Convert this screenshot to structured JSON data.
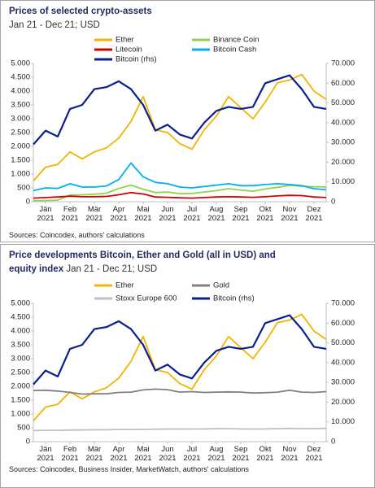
{
  "chart_data": [
    {
      "type": "line",
      "title": "Prices of selected crypto-assets",
      "subtitle": "Jan 21 - Dec 21; USD",
      "x": [
        0,
        0.5,
        1,
        1.5,
        2,
        2.5,
        3,
        3.5,
        4,
        4.5,
        5,
        5.5,
        6,
        6.5,
        7,
        7.5,
        8,
        8.5,
        9,
        9.5,
        10,
        10.5,
        11,
        11.5,
        12
      ],
      "xlim": [
        0,
        12
      ],
      "xticks": [
        {
          "value": 0.5,
          "label": "Jän 2021"
        },
        {
          "value": 1.5,
          "label": "Feb 2021"
        },
        {
          "value": 2.5,
          "label": "Mär 2021"
        },
        {
          "value": 3.5,
          "label": "Apr 2021"
        },
        {
          "value": 4.5,
          "label": "Mai 2021"
        },
        {
          "value": 5.5,
          "label": "Jun 2021"
        },
        {
          "value": 6.5,
          "label": "Jul 2021"
        },
        {
          "value": 7.5,
          "label": "Aug 2021"
        },
        {
          "value": 8.5,
          "label": "Sep 2021"
        },
        {
          "value": 9.5,
          "label": "Okt 2021"
        },
        {
          "value": 10.5,
          "label": "Nov 2021"
        },
        {
          "value": 11.5,
          "label": "Dez 2021"
        }
      ],
      "ylim": [
        0,
        5000
      ],
      "yticks": [
        0,
        {
          "value": 500,
          "label": "500"
        },
        {
          "value": 1000,
          "label": "1.000"
        },
        {
          "value": 1500,
          "label": "1.500"
        },
        {
          "value": 2000,
          "label": "2.000"
        },
        {
          "value": 2500,
          "label": "2.500"
        },
        {
          "value": 3000,
          "label": "3.000"
        },
        {
          "value": 3500,
          "label": "3.500"
        },
        {
          "value": 4000,
          "label": "4.000"
        },
        {
          "value": 4500,
          "label": "4.500"
        },
        {
          "value": 5000,
          "label": "5.000"
        }
      ],
      "y2lim": [
        0,
        70000
      ],
      "y2ticks": [
        0,
        {
          "value": 10000,
          "label": "10.000"
        },
        {
          "value": 20000,
          "label": "20.000"
        },
        {
          "value": 30000,
          "label": "30.000"
        },
        {
          "value": 40000,
          "label": "40.000"
        },
        {
          "value": 50000,
          "label": "50.000"
        },
        {
          "value": 60000,
          "label": "60.000"
        },
        {
          "value": 70000,
          "label": "70.000"
        }
      ],
      "series": [
        {
          "name": "Ether",
          "color": "#f2b400",
          "values": [
            750,
            1250,
            1350,
            1800,
            1550,
            1800,
            1950,
            2300,
            2900,
            3800,
            2600,
            2500,
            2100,
            1900,
            2600,
            3100,
            3800,
            3400,
            3000,
            3600,
            4300,
            4400,
            4600,
            4000,
            3700
          ]
        },
        {
          "name": "Binance Coin",
          "color": "#92d050",
          "values": [
            40,
            45,
            55,
            240,
            250,
            270,
            310,
            480,
            600,
            450,
            330,
            350,
            290,
            300,
            350,
            400,
            470,
            420,
            380,
            460,
            520,
            590,
            560,
            540,
            530
          ]
        },
        {
          "name": "Litecoin",
          "color": "#d00000",
          "values": [
            130,
            150,
            170,
            200,
            180,
            180,
            190,
            250,
            330,
            280,
            170,
            160,
            140,
            130,
            150,
            170,
            180,
            170,
            160,
            180,
            210,
            230,
            220,
            170,
            150
          ]
        },
        {
          "name": "Bitcoin Cash",
          "color": "#00b0f0",
          "values": [
            400,
            500,
            480,
            650,
            530,
            530,
            570,
            800,
            1400,
            900,
            700,
            650,
            530,
            500,
            550,
            600,
            650,
            580,
            580,
            620,
            650,
            620,
            580,
            470,
            430
          ]
        },
        {
          "name": "Bitcoin (rhs)",
          "color": "#0a1f8f",
          "axis": "y2",
          "values": [
            29000,
            36000,
            33000,
            47000,
            49000,
            57000,
            58000,
            61000,
            57000,
            49000,
            36000,
            39000,
            34000,
            32000,
            40000,
            46000,
            48000,
            47000,
            48000,
            60000,
            62000,
            64000,
            57000,
            48000,
            47000
          ]
        }
      ],
      "source": "Sources: Coincodex, authors' calculations"
    },
    {
      "type": "line",
      "title": "Price developments Bitcoin, Ether and Gold (all in USD) and equity index",
      "subtitle": "Jan 21 - Dec 21; USD",
      "x": [
        0,
        0.5,
        1,
        1.5,
        2,
        2.5,
        3,
        3.5,
        4,
        4.5,
        5,
        5.5,
        6,
        6.5,
        7,
        7.5,
        8,
        8.5,
        9,
        9.5,
        10,
        10.5,
        11,
        11.5,
        12
      ],
      "xlim": [
        0,
        12
      ],
      "xticks": [
        {
          "value": 0.5,
          "label": "Jän 2021"
        },
        {
          "value": 1.5,
          "label": "Feb 2021"
        },
        {
          "value": 2.5,
          "label": "Mär 2021"
        },
        {
          "value": 3.5,
          "label": "Apr 2021"
        },
        {
          "value": 4.5,
          "label": "Mai 2021"
        },
        {
          "value": 5.5,
          "label": "Jun 2021"
        },
        {
          "value": 6.5,
          "label": "Jul 2021"
        },
        {
          "value": 7.5,
          "label": "Aug 2021"
        },
        {
          "value": 8.5,
          "label": "Sep 2021"
        },
        {
          "value": 9.5,
          "label": "Okt 2021"
        },
        {
          "value": 10.5,
          "label": "Nov 2021"
        },
        {
          "value": 11.5,
          "label": "Dez 2021"
        }
      ],
      "ylim": [
        0,
        5000
      ],
      "yticks": [
        0,
        {
          "value": 500,
          "label": "500"
        },
        {
          "value": 1000,
          "label": "1.000"
        },
        {
          "value": 1500,
          "label": "1.500"
        },
        {
          "value": 2000,
          "label": "2.000"
        },
        {
          "value": 2500,
          "label": "2.500"
        },
        {
          "value": 3000,
          "label": "3.000"
        },
        {
          "value": 3500,
          "label": "3.500"
        },
        {
          "value": 4000,
          "label": "4.000"
        },
        {
          "value": 4500,
          "label": "4.500"
        },
        {
          "value": 5000,
          "label": "5.000"
        }
      ],
      "y2lim": [
        0,
        70000
      ],
      "y2ticks": [
        0,
        {
          "value": 10000,
          "label": "10.000"
        },
        {
          "value": 20000,
          "label": "20.000"
        },
        {
          "value": 30000,
          "label": "30.000"
        },
        {
          "value": 40000,
          "label": "40.000"
        },
        {
          "value": 50000,
          "label": "50.000"
        },
        {
          "value": 60000,
          "label": "60.000"
        },
        {
          "value": 70000,
          "label": "70.000"
        }
      ],
      "series": [
        {
          "name": "Ether",
          "color": "#f2b400",
          "values": [
            750,
            1250,
            1350,
            1800,
            1550,
            1800,
            1950,
            2300,
            2900,
            3800,
            2600,
            2500,
            2100,
            1900,
            2600,
            3100,
            3800,
            3400,
            3000,
            3600,
            4300,
            4400,
            4600,
            4000,
            3700
          ]
        },
        {
          "name": "Gold",
          "color": "#808080",
          "values": [
            1850,
            1860,
            1830,
            1780,
            1720,
            1730,
            1730,
            1780,
            1790,
            1870,
            1900,
            1880,
            1790,
            1810,
            1780,
            1790,
            1800,
            1790,
            1760,
            1770,
            1790,
            1860,
            1790,
            1780,
            1810
          ]
        },
        {
          "name": "Stoxx Europe 600",
          "color": "#bfbfbf",
          "values": [
            400,
            410,
            410,
            420,
            420,
            430,
            430,
            440,
            440,
            445,
            450,
            455,
            455,
            460,
            460,
            470,
            470,
            460,
            455,
            460,
            470,
            480,
            470,
            470,
            480
          ]
        },
        {
          "name": "Bitcoin (rhs)",
          "color": "#0a1f8f",
          "axis": "y2",
          "values": [
            29000,
            36000,
            33000,
            47000,
            49000,
            57000,
            58000,
            61000,
            57000,
            49000,
            36000,
            39000,
            34000,
            32000,
            40000,
            46000,
            48000,
            47000,
            48000,
            60000,
            62000,
            64000,
            57000,
            48000,
            47000
          ]
        }
      ],
      "source": "Sources: Coincodex, Business Insider, MarketWatch, authors' calculations"
    }
  ]
}
